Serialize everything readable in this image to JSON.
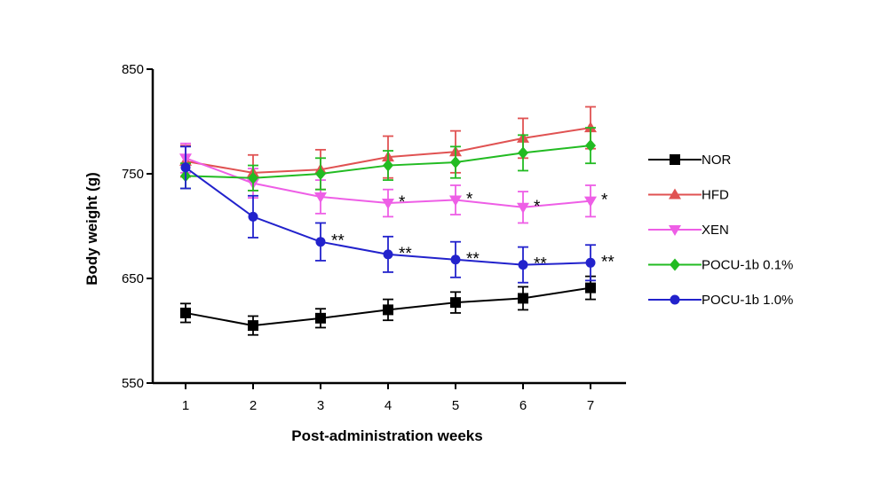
{
  "chart_data": {
    "type": "line",
    "xlabel": "Post-administration weeks",
    "ylabel": "Body weight (g)",
    "x": [
      1,
      2,
      3,
      4,
      5,
      6,
      7
    ],
    "ylim": [
      550,
      850
    ],
    "yticks": [
      550,
      650,
      750,
      850
    ],
    "grid": false,
    "legend_position": "right",
    "series": [
      {
        "name": "NOR",
        "color": "#000000",
        "marker": "square",
        "values": [
          617,
          605,
          612,
          620,
          627,
          631,
          641
        ],
        "errors": [
          9,
          9,
          9,
          10,
          10,
          11,
          11
        ],
        "significance": [
          "",
          "",
          "",
          "",
          "",
          "",
          ""
        ]
      },
      {
        "name": "HFD",
        "color": "#e05252",
        "marker": "triangle-up",
        "values": [
          762,
          751,
          754,
          766,
          771,
          784,
          794
        ],
        "errors": [
          15,
          17,
          19,
          20,
          20,
          19,
          20
        ],
        "significance": [
          "",
          "",
          "",
          "",
          "",
          "",
          ""
        ]
      },
      {
        "name": "XEN",
        "color": "#ee5ee6",
        "marker": "triangle-down",
        "values": [
          765,
          741,
          728,
          722,
          725,
          718,
          724
        ],
        "errors": [
          14,
          14,
          16,
          13,
          14,
          15,
          15
        ],
        "significance": [
          "",
          "",
          "",
          "*",
          "*",
          "*",
          "*"
        ]
      },
      {
        "name": "POCU-1b 0.1%",
        "color": "#22bb22",
        "marker": "diamond",
        "values": [
          748,
          746,
          750,
          758,
          761,
          770,
          777
        ],
        "errors": [
          12,
          12,
          15,
          14,
          15,
          17,
          17
        ],
        "significance": [
          "",
          "",
          "",
          "",
          "",
          "",
          ""
        ]
      },
      {
        "name": "POCU-1b 1.0%",
        "color": "#2222cc",
        "marker": "circle",
        "values": [
          756,
          709,
          685,
          673,
          668,
          663,
          665
        ],
        "errors": [
          20,
          20,
          18,
          17,
          17,
          17,
          17
        ],
        "significance": [
          "",
          "",
          "**",
          "**",
          "**",
          "**",
          "**"
        ]
      }
    ]
  }
}
